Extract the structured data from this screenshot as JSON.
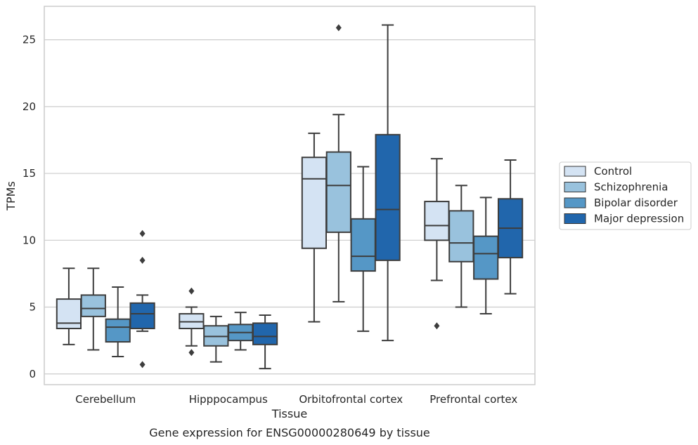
{
  "chart_data": {
    "type": "box",
    "title": "",
    "caption": "Gene expression for ENSG00000280649 by tissue",
    "xlabel": "Tissue",
    "ylabel": "TPMs",
    "ylim": [
      -0.8,
      27.5
    ],
    "yticks": [
      0,
      5,
      10,
      15,
      20,
      25
    ],
    "grid": "horizontal",
    "legend_position": "right",
    "categories": [
      "Cerebellum",
      "Hipppocampus",
      "Orbitofrontal cortex",
      "Prefrontal cortex"
    ],
    "series": [
      {
        "name": "Control",
        "color": "#d4e3f3",
        "boxes": [
          {
            "whislo": 2.2,
            "q1": 3.4,
            "med": 3.8,
            "q3": 5.6,
            "whishi": 7.9,
            "fliers": []
          },
          {
            "whislo": 2.1,
            "q1": 3.4,
            "med": 3.9,
            "q3": 4.5,
            "whishi": 5.0,
            "fliers": [
              1.6,
              6.2
            ]
          },
          {
            "whislo": 3.9,
            "q1": 9.4,
            "med": 14.6,
            "q3": 16.2,
            "whishi": 18.0,
            "fliers": []
          },
          {
            "whislo": 7.0,
            "q1": 10.0,
            "med": 11.1,
            "q3": 12.9,
            "whishi": 16.1,
            "fliers": [
              3.6
            ]
          }
        ]
      },
      {
        "name": "Schizophrenia",
        "color": "#99c2dd",
        "boxes": [
          {
            "whislo": 1.8,
            "q1": 4.3,
            "med": 4.9,
            "q3": 5.9,
            "whishi": 7.9,
            "fliers": []
          },
          {
            "whislo": 0.9,
            "q1": 2.1,
            "med": 2.8,
            "q3": 3.6,
            "whishi": 4.3,
            "fliers": []
          },
          {
            "whislo": 5.4,
            "q1": 10.6,
            "med": 14.1,
            "q3": 16.6,
            "whishi": 19.4,
            "fliers": [
              25.9
            ]
          },
          {
            "whislo": 5.0,
            "q1": 8.4,
            "med": 9.8,
            "q3": 12.2,
            "whishi": 14.1,
            "fliers": []
          }
        ]
      },
      {
        "name": "Bipolar disorder",
        "color": "#5597c6",
        "boxes": [
          {
            "whislo": 1.3,
            "q1": 2.4,
            "med": 3.5,
            "q3": 4.1,
            "whishi": 6.5,
            "fliers": []
          },
          {
            "whislo": 1.8,
            "q1": 2.5,
            "med": 3.1,
            "q3": 3.7,
            "whishi": 4.6,
            "fliers": []
          },
          {
            "whislo": 3.2,
            "q1": 7.7,
            "med": 8.8,
            "q3": 11.6,
            "whishi": 15.5,
            "fliers": []
          },
          {
            "whislo": 4.5,
            "q1": 7.1,
            "med": 9.0,
            "q3": 10.3,
            "whishi": 13.2,
            "fliers": []
          }
        ]
      },
      {
        "name": "Major depression",
        "color": "#2166ac",
        "boxes": [
          {
            "whislo": 3.2,
            "q1": 3.4,
            "med": 4.5,
            "q3": 5.3,
            "whishi": 5.9,
            "fliers": [
              10.5,
              8.5,
              0.7
            ]
          },
          {
            "whislo": 0.4,
            "q1": 2.2,
            "med": 2.8,
            "q3": 3.8,
            "whishi": 4.4,
            "fliers": []
          },
          {
            "whislo": 2.5,
            "q1": 8.5,
            "med": 12.3,
            "q3": 17.9,
            "whishi": 26.1,
            "fliers": []
          },
          {
            "whislo": 6.0,
            "q1": 8.7,
            "med": 10.9,
            "q3": 13.1,
            "whishi": 16.0,
            "fliers": []
          }
        ]
      }
    ]
  }
}
